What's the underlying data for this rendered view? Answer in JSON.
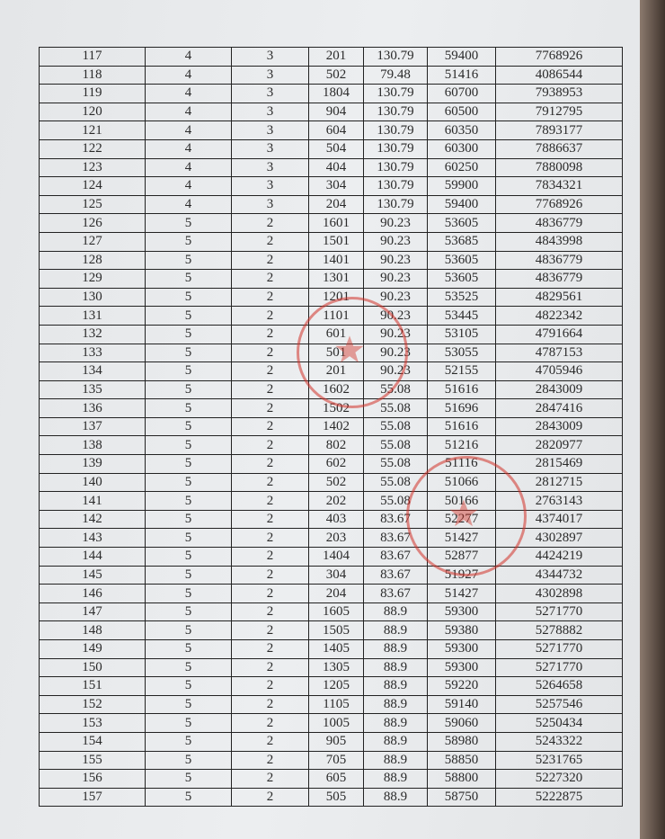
{
  "table": {
    "rows": [
      [
        "117",
        "4",
        "3",
        "201",
        "130.79",
        "59400",
        "7768926"
      ],
      [
        "118",
        "4",
        "3",
        "502",
        "79.48",
        "51416",
        "4086544"
      ],
      [
        "119",
        "4",
        "3",
        "1804",
        "130.79",
        "60700",
        "7938953"
      ],
      [
        "120",
        "4",
        "3",
        "904",
        "130.79",
        "60500",
        "7912795"
      ],
      [
        "121",
        "4",
        "3",
        "604",
        "130.79",
        "60350",
        "7893177"
      ],
      [
        "122",
        "4",
        "3",
        "504",
        "130.79",
        "60300",
        "7886637"
      ],
      [
        "123",
        "4",
        "3",
        "404",
        "130.79",
        "60250",
        "7880098"
      ],
      [
        "124",
        "4",
        "3",
        "304",
        "130.79",
        "59900",
        "7834321"
      ],
      [
        "125",
        "4",
        "3",
        "204",
        "130.79",
        "59400",
        "7768926"
      ],
      [
        "126",
        "5",
        "2",
        "1601",
        "90.23",
        "53605",
        "4836779"
      ],
      [
        "127",
        "5",
        "2",
        "1501",
        "90.23",
        "53685",
        "4843998"
      ],
      [
        "128",
        "5",
        "2",
        "1401",
        "90.23",
        "53605",
        "4836779"
      ],
      [
        "129",
        "5",
        "2",
        "1301",
        "90.23",
        "53605",
        "4836779"
      ],
      [
        "130",
        "5",
        "2",
        "1201",
        "90.23",
        "53525",
        "4829561"
      ],
      [
        "131",
        "5",
        "2",
        "1101",
        "90.23",
        "53445",
        "4822342"
      ],
      [
        "132",
        "5",
        "2",
        "601",
        "90.23",
        "53105",
        "4791664"
      ],
      [
        "133",
        "5",
        "2",
        "501",
        "90.23",
        "53055",
        "4787153"
      ],
      [
        "134",
        "5",
        "2",
        "201",
        "90.23",
        "52155",
        "4705946"
      ],
      [
        "135",
        "5",
        "2",
        "1602",
        "55.08",
        "51616",
        "2843009"
      ],
      [
        "136",
        "5",
        "2",
        "1502",
        "55.08",
        "51696",
        "2847416"
      ],
      [
        "137",
        "5",
        "2",
        "1402",
        "55.08",
        "51616",
        "2843009"
      ],
      [
        "138",
        "5",
        "2",
        "802",
        "55.08",
        "51216",
        "2820977"
      ],
      [
        "139",
        "5",
        "2",
        "602",
        "55.08",
        "51116",
        "2815469"
      ],
      [
        "140",
        "5",
        "2",
        "502",
        "55.08",
        "51066",
        "2812715"
      ],
      [
        "141",
        "5",
        "2",
        "202",
        "55.08",
        "50166",
        "2763143"
      ],
      [
        "142",
        "5",
        "2",
        "403",
        "83.67",
        "52277",
        "4374017"
      ],
      [
        "143",
        "5",
        "2",
        "203",
        "83.67",
        "51427",
        "4302897"
      ],
      [
        "144",
        "5",
        "2",
        "1404",
        "83.67",
        "52877",
        "4424219"
      ],
      [
        "145",
        "5",
        "2",
        "304",
        "83.67",
        "51927",
        "4344732"
      ],
      [
        "146",
        "5",
        "2",
        "204",
        "83.67",
        "51427",
        "4302898"
      ],
      [
        "147",
        "5",
        "2",
        "1605",
        "88.9",
        "59300",
        "5271770"
      ],
      [
        "148",
        "5",
        "2",
        "1505",
        "88.9",
        "59380",
        "5278882"
      ],
      [
        "149",
        "5",
        "2",
        "1405",
        "88.9",
        "59300",
        "5271770"
      ],
      [
        "150",
        "5",
        "2",
        "1305",
        "88.9",
        "59300",
        "5271770"
      ],
      [
        "151",
        "5",
        "2",
        "1205",
        "88.9",
        "59220",
        "5264658"
      ],
      [
        "152",
        "5",
        "2",
        "1105",
        "88.9",
        "59140",
        "5257546"
      ],
      [
        "153",
        "5",
        "2",
        "1005",
        "88.9",
        "59060",
        "5250434"
      ],
      [
        "154",
        "5",
        "2",
        "905",
        "88.9",
        "58980",
        "5243322"
      ],
      [
        "155",
        "5",
        "2",
        "705",
        "88.9",
        "58850",
        "5231765"
      ],
      [
        "156",
        "5",
        "2",
        "605",
        "88.9",
        "58800",
        "5227320"
      ],
      [
        "157",
        "5",
        "2",
        "505",
        "88.9",
        "58750",
        "5222875"
      ]
    ]
  },
  "stamps": {
    "color": "#d23228",
    "icon": "official-seal-star"
  }
}
